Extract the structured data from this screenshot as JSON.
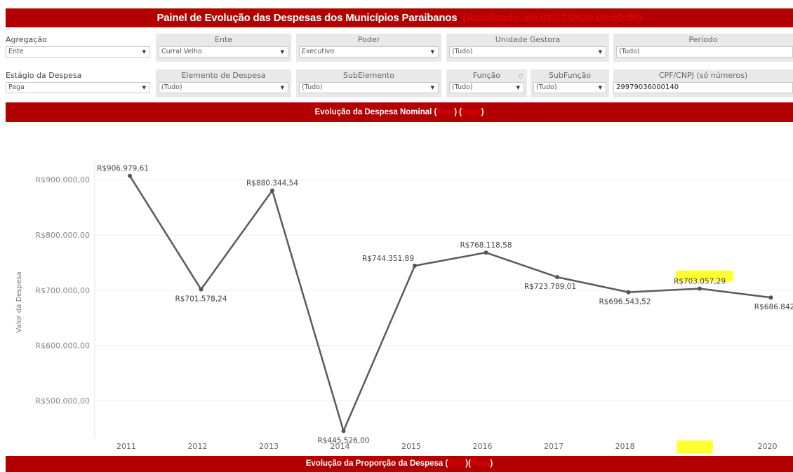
{
  "header": {
    "title": "Painel de Evolução das Despesas dos Municípios Paraibanos",
    "updated": "(Atualizado até 01/12/2020 00:00:00)"
  },
  "filters": {
    "agregacao": {
      "label": "Agregação",
      "value": "Ente"
    },
    "ente": {
      "label": "Ente",
      "value": "Curral Velho"
    },
    "poder": {
      "label": "Poder",
      "value": "Executivo"
    },
    "unidade_gestora": {
      "label": "Unidade Gestora",
      "value": "(Tudo)"
    },
    "periodo": {
      "label": "Período",
      "value": "(Tudo)"
    },
    "estagio": {
      "label": "Estágio da Despesa",
      "value": "Paga"
    },
    "elemento": {
      "label": "Elemento de Despesa",
      "value": "(Tudo)"
    },
    "subelemento": {
      "label": "SubElemento",
      "value": "(Tudo)"
    },
    "funcao": {
      "label": "Função",
      "value": "(Tudo)"
    },
    "subfuncao": {
      "label": "SubFunção",
      "value": "(Tudo)"
    },
    "cpf": {
      "label": "CPF/CNPJ (só números)",
      "value": "29979036000140"
    }
  },
  "section1": {
    "prefix": "Evolução da Despesa Nominal (",
    "ente": "Ente",
    "mid": ") (",
    "estagio": "Paga",
    "suffix": ")"
  },
  "section2": {
    "prefix": "Evolução da Proporção da Despesa (",
    "ente": "Ente",
    "mid": ")(",
    "estagio": "Paga",
    "suffix": ")"
  },
  "colors": {
    "accent": "#b20000",
    "line": "#5a5a5a",
    "highlight": "#ffff33"
  },
  "chart_data": {
    "type": "line",
    "ylabel": "Valor da Despesa",
    "x": [
      "2011",
      "2012",
      "2013",
      "2014",
      "2015",
      "2016",
      "2017",
      "2018",
      "2019",
      "2020"
    ],
    "values": [
      906979.61,
      701578.24,
      880344.54,
      445526.0,
      744351.89,
      768118.58,
      723789.01,
      696543.52,
      703057.29,
      686842
    ],
    "labels": [
      "R$906.979,61",
      "R$701.578,24",
      "R$880.344,54",
      "R$445.526,00",
      "R$744.351,89",
      "R$768.118,58",
      "R$723.789,01",
      "R$696.543,52",
      "R$703.057,29",
      "R$686.842"
    ],
    "yticks": [
      500000,
      600000,
      700000,
      800000,
      900000
    ],
    "ytick_labels": [
      "R$500.000,00",
      "R$600.000,00",
      "R$700.000,00",
      "R$800.000,00",
      "R$900.000,00"
    ],
    "ylim": [
      436000,
      918000
    ],
    "grid": true,
    "highlight_year": "2019"
  }
}
